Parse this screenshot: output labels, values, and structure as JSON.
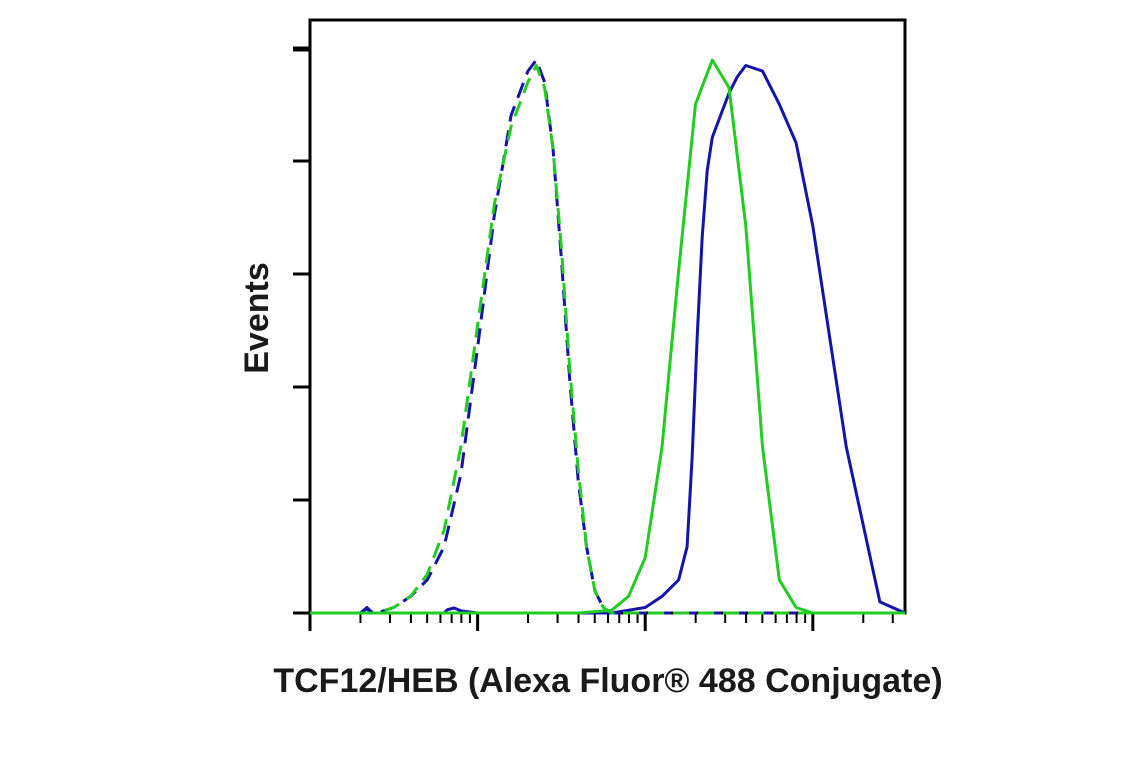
{
  "chart_data": {
    "type": "line",
    "title": "",
    "xlabel": "TCF12/HEB (Alexa Fluor® 488 Conjugate)",
    "ylabel": "Events",
    "xscale": "log",
    "xlim": [
      0,
      3.55
    ],
    "ylim": [
      0,
      100
    ],
    "grid": false,
    "legend": "none",
    "series": [
      {
        "style": "solid",
        "color": "#1414a8",
        "x": [
          0.0,
          0.3,
          0.34,
          0.36,
          0.38,
          0.6,
          0.8,
          0.82,
          0.86,
          0.9,
          1.0,
          1.2,
          1.4,
          1.6,
          1.8,
          1.9,
          2.0,
          2.1,
          2.2,
          2.25,
          2.28,
          2.31,
          2.34,
          2.37,
          2.4,
          2.45,
          2.5,
          2.55,
          2.6,
          2.7,
          2.8,
          2.9,
          3.0,
          3.2,
          3.4,
          3.55
        ],
        "y": [
          0,
          0,
          0.8,
          0.2,
          0,
          0,
          0,
          0.6,
          0.9,
          0.4,
          0,
          0,
          0,
          0,
          0,
          0.5,
          1,
          3,
          6,
          12,
          28,
          50,
          68,
          80,
          86,
          90,
          94,
          97,
          99,
          98,
          92,
          85,
          70,
          30,
          2,
          0
        ]
      },
      {
        "style": "dashed",
        "color": "#1414a8",
        "x": [
          0.0,
          0.3,
          0.34,
          0.36,
          0.38,
          0.4,
          0.5,
          0.6,
          0.7,
          0.8,
          0.9,
          1.0,
          1.1,
          1.2,
          1.3,
          1.35,
          1.4,
          1.45,
          1.5,
          1.55,
          1.6,
          1.65,
          1.7,
          1.75,
          1.8,
          1.85,
          1.9,
          2.0,
          2.1,
          2.2,
          2.3,
          2.4,
          2.5,
          2.6,
          2.8,
          3.0,
          3.2,
          3.4,
          3.55
        ],
        "y": [
          0,
          0,
          1.0,
          0.4,
          0,
          0,
          1,
          3,
          6,
          12,
          25,
          48,
          72,
          90,
          98,
          100,
          96,
          84,
          64,
          42,
          24,
          12,
          4,
          1,
          0,
          0,
          0,
          0,
          0,
          0,
          0,
          0,
          0,
          0,
          0,
          0,
          0,
          0,
          0
        ]
      },
      {
        "style": "solid",
        "color": "#22cc22",
        "x": [
          0.0,
          0.3,
          0.4,
          0.5,
          0.6,
          0.7,
          0.8,
          0.9,
          1.0,
          1.2,
          1.4,
          1.6,
          1.8,
          1.9,
          2.0,
          2.1,
          2.2,
          2.3,
          2.4,
          2.5,
          2.6,
          2.7,
          2.8,
          2.9,
          3.0,
          3.2,
          3.4,
          3.55
        ],
        "y": [
          0,
          0,
          0,
          0,
          0,
          0,
          0,
          0,
          0,
          0,
          0,
          0,
          0.5,
          3,
          10,
          30,
          62,
          92,
          100,
          95,
          70,
          30,
          6,
          1,
          0,
          0,
          0,
          0
        ]
      },
      {
        "style": "dashed",
        "color": "#22cc22",
        "x": [
          0.0,
          0.3,
          0.4,
          0.5,
          0.6,
          0.7,
          0.8,
          0.9,
          1.0,
          1.1,
          1.2,
          1.3,
          1.35,
          1.4,
          1.45,
          1.5,
          1.55,
          1.6,
          1.65,
          1.7,
          1.75,
          1.8,
          1.85,
          1.9,
          2.0,
          2.1,
          2.2,
          2.3,
          2.4,
          2.5,
          2.6,
          2.8,
          3.0,
          3.2,
          3.4,
          3.55
        ],
        "y": [
          0,
          0,
          0,
          1,
          3,
          7,
          15,
          30,
          52,
          74,
          88,
          96,
          99,
          95,
          84,
          66,
          44,
          26,
          12,
          4,
          1,
          0,
          0,
          0,
          0,
          0,
          0,
          0,
          0,
          0,
          0,
          0,
          0,
          0,
          0,
          0
        ]
      }
    ]
  }
}
